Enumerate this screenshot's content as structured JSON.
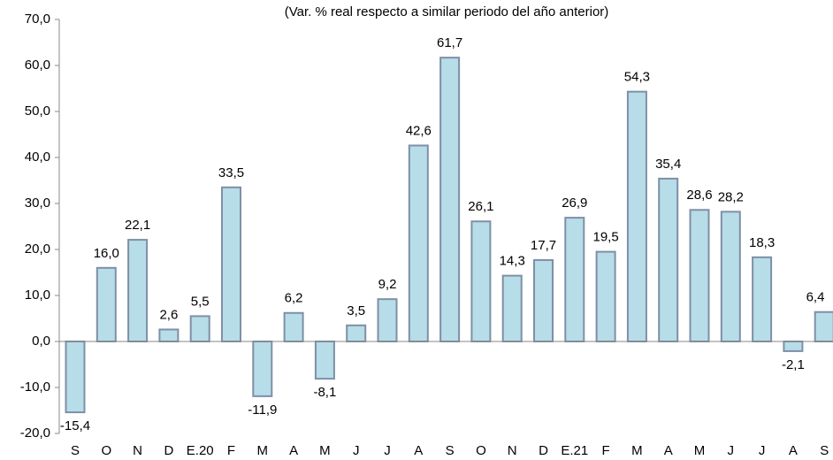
{
  "chart_data": {
    "type": "bar",
    "title": "(Var. % real respecto a similar periodo del año anterior)",
    "categories": [
      "S",
      "O",
      "N",
      "D",
      "E.20",
      "F",
      "M",
      "A",
      "M",
      "J",
      "J",
      "A",
      "S",
      "O",
      "N",
      "D",
      "E.21",
      "F",
      "M",
      "A",
      "M",
      "J",
      "J",
      "A",
      "S"
    ],
    "values": [
      -15.4,
      16.0,
      22.1,
      2.6,
      5.5,
      33.5,
      -11.9,
      6.2,
      -8.1,
      3.5,
      9.2,
      42.6,
      61.7,
      26.1,
      14.3,
      17.7,
      26.9,
      19.5,
      54.3,
      35.4,
      28.6,
      28.2,
      18.3,
      -2.1,
      6.4
    ],
    "value_labels": [
      "-15,4",
      "16,0",
      "22,1",
      "2,6",
      "5,5",
      "33,5",
      "-11,9",
      "6,2",
      "-8,1",
      "3,5",
      "9,2",
      "42,6",
      "61,7",
      "26,1",
      "14,3",
      "17,7",
      "26,9",
      "19,5",
      "54,3",
      "35,4",
      "28,6",
      "28,2",
      "18,3",
      "-2,1",
      "6,4"
    ],
    "color": "#b7dde8",
    "edge_color": "#7f8fa6",
    "ylim": [
      -20,
      70
    ],
    "yticks": [
      {
        "value": -20,
        "label": "-20,0"
      },
      {
        "value": -10,
        "label": "-10,0"
      },
      {
        "value": 0,
        "label": "0,0"
      },
      {
        "value": 10,
        "label": "10,0"
      },
      {
        "value": 20,
        "label": "20,0"
      },
      {
        "value": 30,
        "label": "30,0"
      },
      {
        "value": 40,
        "label": "40,0"
      },
      {
        "value": 50,
        "label": "50,0"
      },
      {
        "value": 60,
        "label": "60,0"
      },
      {
        "value": 70,
        "label": "70,0"
      }
    ],
    "grid": false
  }
}
